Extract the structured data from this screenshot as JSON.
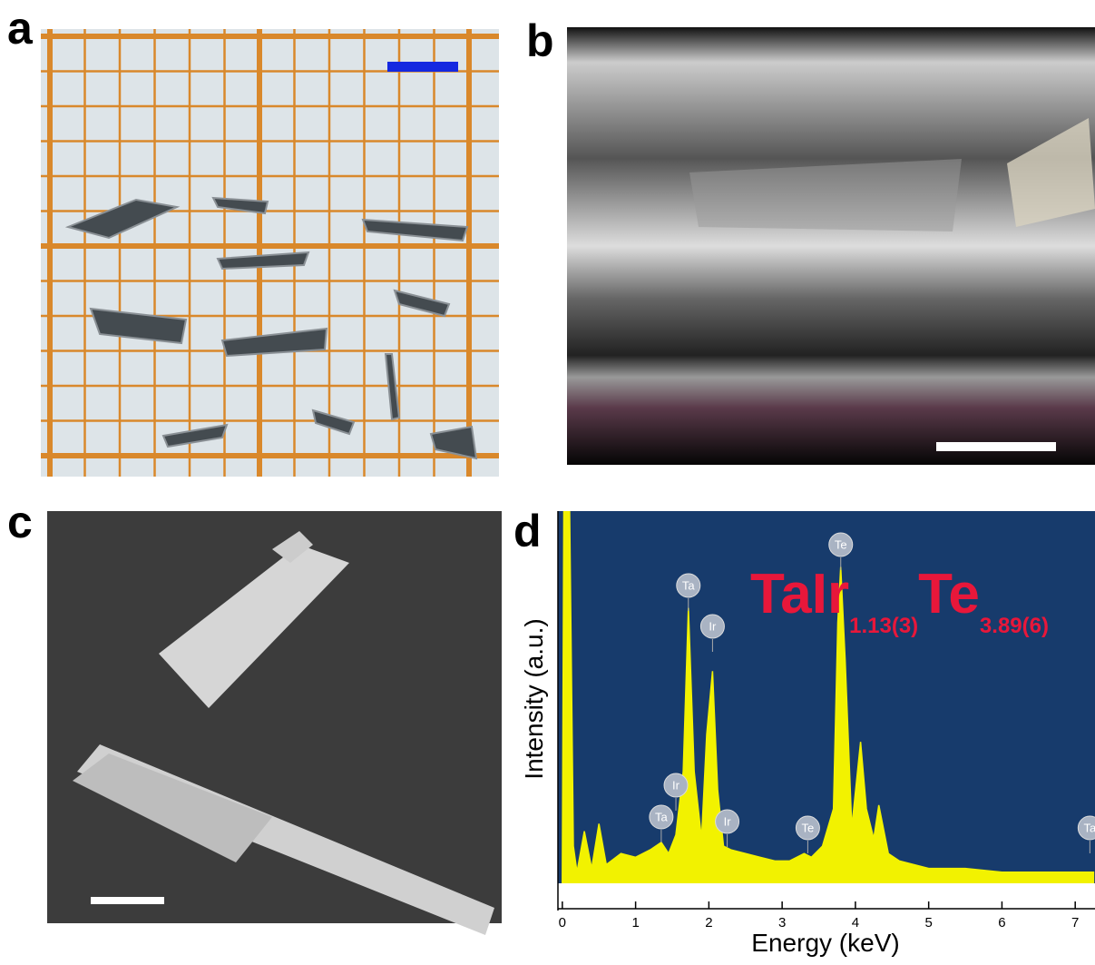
{
  "panels": [
    {
      "label": "a"
    },
    {
      "label": "b"
    },
    {
      "label": "c"
    },
    {
      "label": "d"
    }
  ],
  "chart_data": {
    "type": "area",
    "xlabel": "Energy (keV)",
    "ylabel": "Intensity (a.u.)",
    "formula": [
      "TaIr",
      "1.13(3)",
      "Te",
      "3.89(6)"
    ],
    "color": "#f2f200",
    "background": "#173b6c",
    "x": [
      0,
      0.02,
      0.05,
      0.1,
      0.15,
      0.2,
      0.3,
      0.4,
      0.5,
      0.6,
      0.8,
      1.0,
      1.2,
      1.35,
      1.45,
      1.55,
      1.65,
      1.72,
      1.8,
      1.9,
      1.97,
      2.05,
      2.12,
      2.2,
      2.3,
      2.5,
      2.7,
      2.9,
      3.1,
      3.3,
      3.4,
      3.55,
      3.7,
      3.76,
      3.8,
      3.86,
      3.95,
      4.07,
      4.15,
      4.25,
      4.32,
      4.45,
      4.6,
      5.0,
      5.5,
      6.0,
      6.5,
      7.0,
      7.25
    ],
    "values": [
      0,
      100,
      100,
      100,
      10,
      3,
      14,
      4,
      16,
      5,
      8,
      7,
      9,
      11,
      8,
      13,
      30,
      74,
      30,
      12,
      40,
      57,
      25,
      10,
      9,
      8,
      7,
      6,
      6,
      8,
      7,
      10,
      20,
      70,
      85,
      60,
      15,
      38,
      20,
      12,
      21,
      8,
      6,
      4,
      4,
      3,
      3,
      3,
      3
    ],
    "xlim": [
      -0.06,
      7.27
    ],
    "ylim": [
      0,
      100
    ],
    "xticks": [
      0,
      1,
      2,
      3,
      4,
      5,
      6,
      7
    ],
    "annotations": [
      {
        "text": "Te",
        "x": 3.8
      },
      {
        "text": "Ta",
        "x": 1.72
      },
      {
        "text": "Ir",
        "x": 2.05
      },
      {
        "text": "Ir",
        "x": 1.55
      },
      {
        "text": "Ta",
        "x": 1.35
      },
      {
        "text": "Ir",
        "x": 2.25
      },
      {
        "text": "Te",
        "x": 3.35
      },
      {
        "text": "Ta",
        "x": 7.2
      }
    ]
  }
}
